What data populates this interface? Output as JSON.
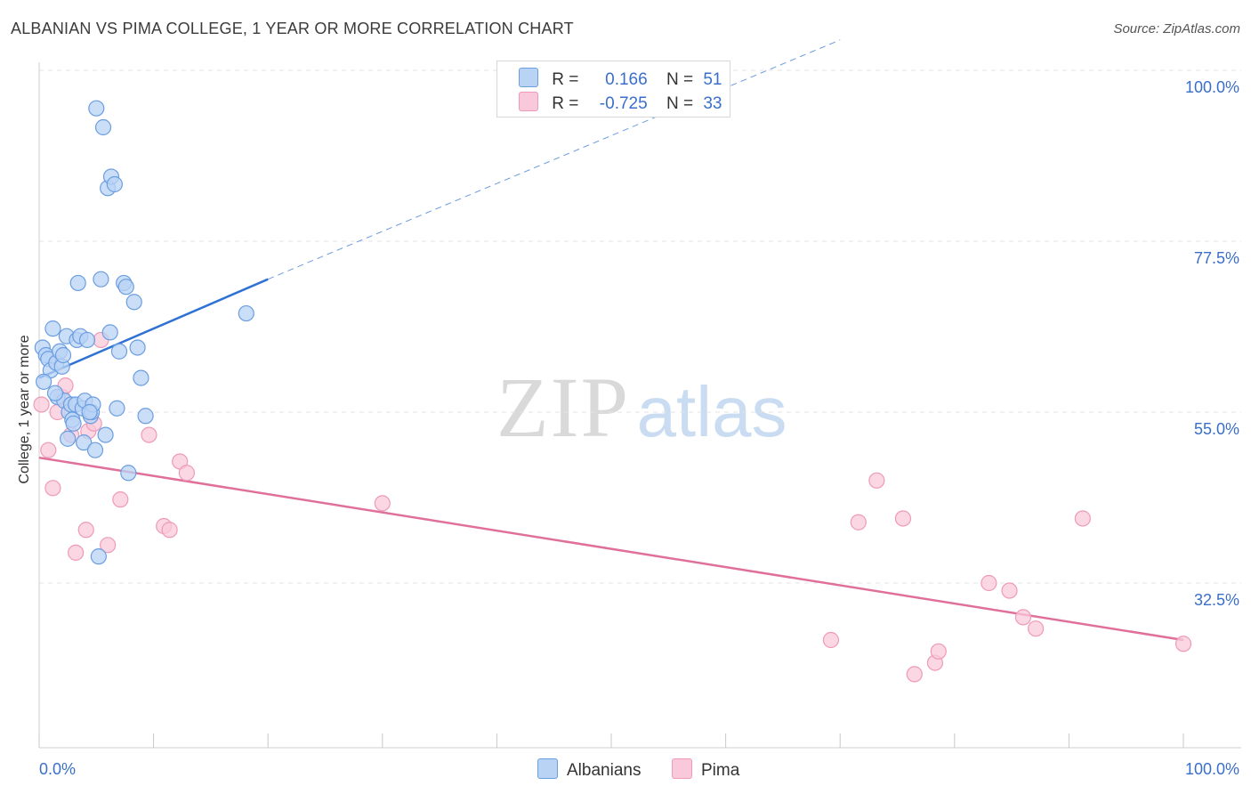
{
  "title": "ALBANIAN VS PIMA COLLEGE, 1 YEAR OR MORE CORRELATION CHART",
  "source": "Source: ZipAtlas.com",
  "watermark": {
    "zip": "ZIP",
    "atlas": "atlas"
  },
  "legend": {
    "albanians": {
      "r_label": "R =",
      "r_value": "0.166",
      "n_label": "N =",
      "n_value": "51"
    },
    "pima": {
      "r_label": "R =",
      "r_value": "-0.725",
      "n_label": "N =",
      "n_value": "33"
    }
  },
  "colors": {
    "albanians_fill": "#b9d3f5",
    "albanians_stroke": "#6a9ee0",
    "albanians_line": "#2f72d4",
    "pima_fill": "#f9c8da",
    "pima_stroke": "#ee9ab8",
    "pima_line": "#e0709a",
    "tick_label": "#3a6fc9",
    "grid": "#e3e3e3"
  },
  "chart_data": {
    "type": "scatter",
    "title": "ALBANIAN VS PIMA COLLEGE, 1 YEAR OR MORE CORRELATION CHART",
    "xlabel": "",
    "ylabel": "College, 1 year or more",
    "xlim": [
      0,
      100
    ],
    "ylim": [
      10,
      102
    ],
    "x_tick_labels": [
      "0.0%",
      "100.0%"
    ],
    "y_ticks": [
      100,
      77.5,
      55,
      32.5
    ],
    "y_tick_labels": [
      "100.0%",
      "77.5%",
      "55.0%",
      "32.5%"
    ],
    "series": [
      {
        "name": "Albanians",
        "points": [
          [
            0.3,
            63.5
          ],
          [
            0.6,
            62.5
          ],
          [
            0.8,
            62.0
          ],
          [
            1.0,
            60.5
          ],
          [
            1.2,
            66.0
          ],
          [
            1.5,
            61.5
          ],
          [
            1.6,
            57.0
          ],
          [
            1.8,
            63.0
          ],
          [
            2.0,
            61.0
          ],
          [
            2.2,
            56.5
          ],
          [
            2.4,
            65.0
          ],
          [
            2.5,
            51.5
          ],
          [
            2.6,
            55.0
          ],
          [
            2.8,
            56.0
          ],
          [
            2.9,
            54.0
          ],
          [
            3.2,
            56.0
          ],
          [
            3.3,
            64.5
          ],
          [
            3.4,
            72.0
          ],
          [
            3.6,
            65.0
          ],
          [
            3.8,
            55.5
          ],
          [
            3.9,
            51.0
          ],
          [
            4.0,
            56.5
          ],
          [
            4.2,
            64.5
          ],
          [
            4.5,
            54.5
          ],
          [
            4.6,
            55.0
          ],
          [
            4.7,
            56.0
          ],
          [
            4.9,
            50.0
          ],
          [
            5.0,
            95.0
          ],
          [
            5.2,
            36.0
          ],
          [
            5.4,
            72.5
          ],
          [
            5.6,
            92.5
          ],
          [
            5.8,
            52.0
          ],
          [
            6.0,
            84.5
          ],
          [
            6.2,
            65.5
          ],
          [
            6.3,
            86.0
          ],
          [
            6.6,
            85.0
          ],
          [
            7.0,
            63.0
          ],
          [
            7.4,
            72.0
          ],
          [
            7.6,
            71.5
          ],
          [
            7.8,
            47.0
          ],
          [
            8.3,
            69.5
          ],
          [
            8.6,
            63.5
          ],
          [
            8.9,
            59.5
          ],
          [
            9.3,
            54.5
          ],
          [
            18.1,
            68.0
          ],
          [
            0.4,
            59.0
          ],
          [
            1.4,
            57.5
          ],
          [
            2.1,
            62.5
          ],
          [
            3.0,
            53.5
          ],
          [
            4.4,
            55.0
          ],
          [
            6.8,
            55.5
          ]
        ]
      },
      {
        "name": "Pima",
        "points": [
          [
            0.2,
            56.0
          ],
          [
            0.8,
            50.0
          ],
          [
            1.2,
            45.0
          ],
          [
            1.6,
            55.0
          ],
          [
            2.0,
            57.0
          ],
          [
            2.3,
            58.5
          ],
          [
            2.8,
            52.0
          ],
          [
            3.2,
            36.5
          ],
          [
            4.1,
            39.5
          ],
          [
            4.3,
            52.5
          ],
          [
            4.8,
            53.5
          ],
          [
            5.4,
            64.5
          ],
          [
            6.0,
            37.5
          ],
          [
            7.1,
            43.5
          ],
          [
            9.6,
            52.0
          ],
          [
            10.9,
            40.0
          ],
          [
            11.4,
            39.5
          ],
          [
            12.3,
            48.5
          ],
          [
            12.9,
            47.0
          ],
          [
            30.0,
            43.0
          ],
          [
            69.2,
            25.0
          ],
          [
            71.6,
            40.5
          ],
          [
            73.2,
            46.0
          ],
          [
            75.5,
            41.0
          ],
          [
            76.5,
            20.5
          ],
          [
            78.3,
            22.0
          ],
          [
            78.6,
            23.5
          ],
          [
            83.0,
            32.5
          ],
          [
            84.8,
            31.5
          ],
          [
            86.0,
            28.0
          ],
          [
            87.1,
            26.5
          ],
          [
            91.2,
            41.0
          ],
          [
            100.0,
            24.5
          ]
        ]
      }
    ],
    "trend_lines": [
      {
        "series": "Albanians",
        "x0": 0,
        "y0": 59.5,
        "x1": 20,
        "y1": 72.5,
        "dashed_until_x": 70,
        "dashed_y_end": 104
      },
      {
        "series": "Pima",
        "x0": 0,
        "y0": 49.0,
        "x1": 100,
        "y1": 25.0
      }
    ]
  }
}
